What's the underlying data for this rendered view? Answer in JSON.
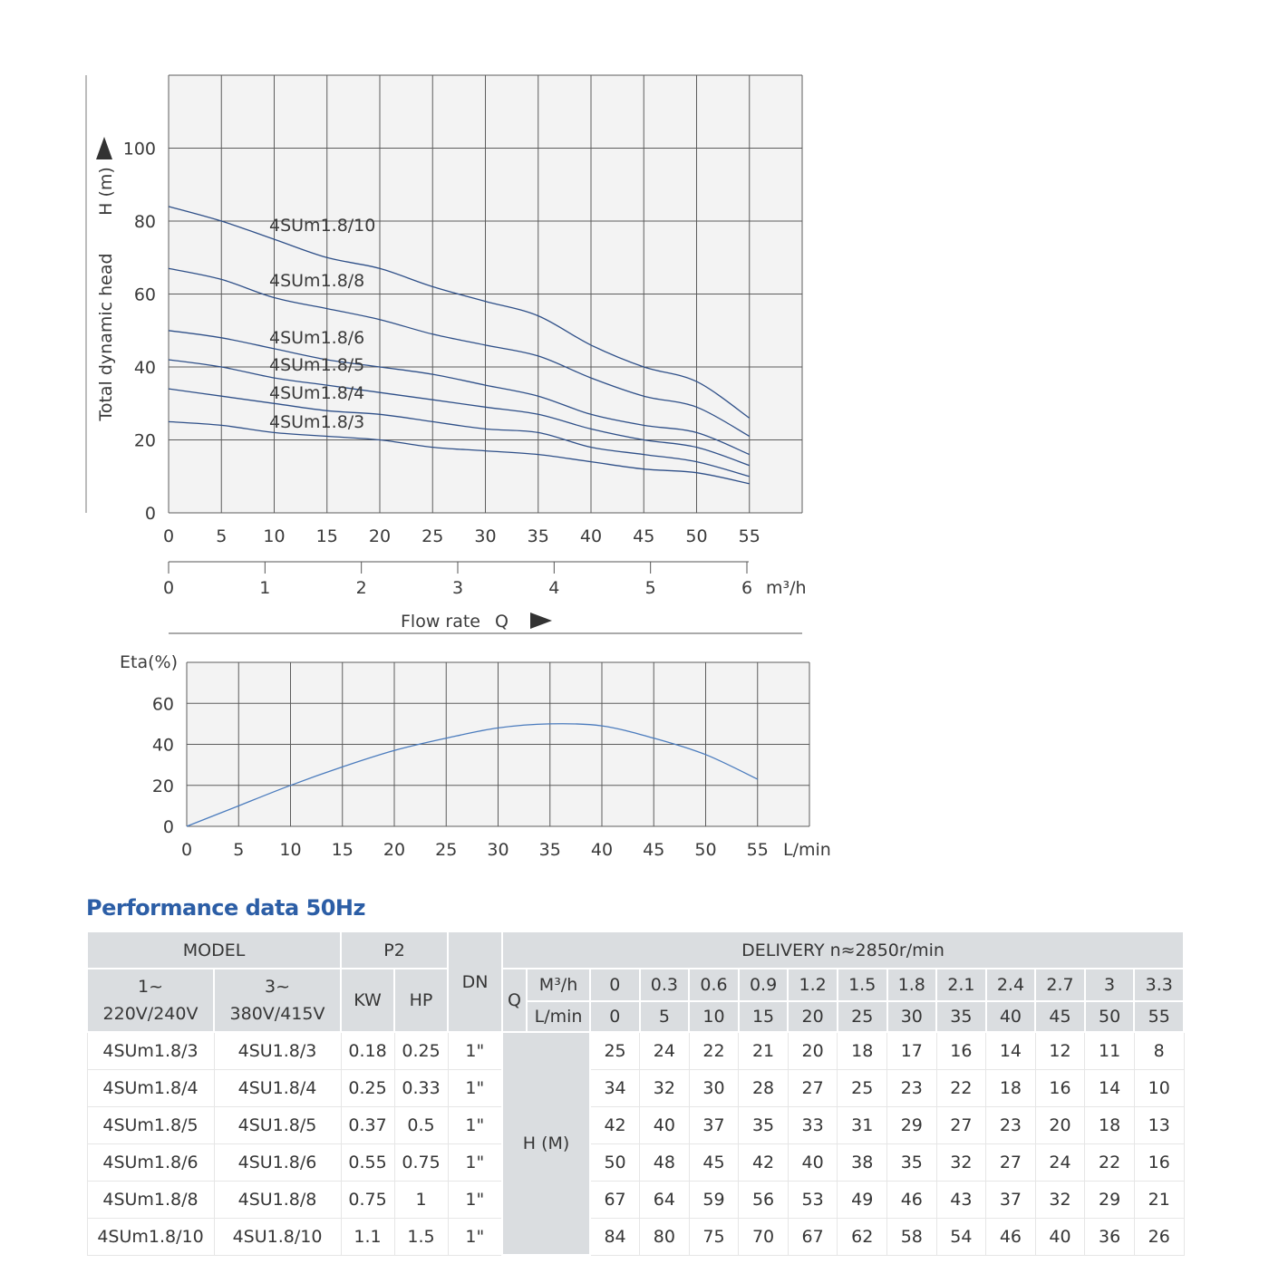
{
  "colors": {
    "head_curve": "#2e4f88",
    "eta_curve": "#4a7bbd",
    "title": "#2c5ea6",
    "header_background": "#dadde0",
    "plot_background": "#f3f3f3"
  },
  "icons": {
    "y_axis_arrow": "up-arrow-icon",
    "x_axis_arrow": "right-arrow-icon"
  },
  "chart_data": [
    {
      "type": "line",
      "ylabel": "Total dynamic head",
      "yunit": "H (m)",
      "xlabel": "Flow rate",
      "xlabel_symbol": "Q",
      "x": [
        0,
        5,
        10,
        15,
        20,
        25,
        30,
        35,
        40,
        45,
        50,
        55
      ],
      "xticks": [
        0,
        5,
        10,
        15,
        20,
        25,
        30,
        35,
        40,
        45,
        50,
        55
      ],
      "xlim": [
        0,
        60
      ],
      "yticks": [
        0,
        20,
        40,
        60,
        80,
        100
      ],
      "ylim": [
        0,
        120
      ],
      "x2_ticks": [
        0,
        1,
        2,
        3,
        4,
        5,
        6
      ],
      "x2lim": [
        0,
        6
      ],
      "x2_unit": "m³/h",
      "grid": true,
      "series": [
        {
          "name": "4SUm1.8/10",
          "values": [
            84,
            80,
            75,
            70,
            67,
            62,
            58,
            54,
            46,
            40,
            36,
            26
          ]
        },
        {
          "name": "4SUm1.8/8",
          "values": [
            67,
            64,
            59,
            56,
            53,
            49,
            46,
            43,
            37,
            32,
            29,
            21
          ]
        },
        {
          "name": "4SUm1.8/6",
          "values": [
            50,
            48,
            45,
            42,
            40,
            38,
            35,
            32,
            27,
            24,
            22,
            16
          ]
        },
        {
          "name": "4SUm1.8/5",
          "values": [
            42,
            40,
            37,
            35,
            33,
            31,
            29,
            27,
            23,
            20,
            18,
            13
          ]
        },
        {
          "name": "4SUm1.8/4",
          "values": [
            34,
            32,
            30,
            28,
            27,
            25,
            23,
            22,
            18,
            16,
            14,
            10
          ]
        },
        {
          "name": "4SUm1.8/3",
          "values": [
            25,
            24,
            22,
            21,
            20,
            18,
            17,
            16,
            14,
            12,
            11,
            8
          ]
        }
      ]
    },
    {
      "type": "line",
      "ylabel": "Eta(%)",
      "x_unit": "L/min",
      "x": [
        0,
        5,
        10,
        15,
        20,
        25,
        30,
        35,
        40,
        45,
        50,
        55
      ],
      "xticks": [
        0,
        5,
        10,
        15,
        20,
        25,
        30,
        35,
        40,
        45,
        50,
        55
      ],
      "xlim": [
        0,
        60
      ],
      "yticks": [
        0,
        20,
        40,
        60
      ],
      "ylim": [
        0,
        80
      ],
      "grid": true,
      "series": [
        {
          "values": [
            0,
            10,
            20,
            29,
            37,
            43,
            48,
            50,
            49,
            43,
            35,
            23
          ]
        }
      ]
    }
  ],
  "table": {
    "title": "Performance data 50Hz",
    "header": {
      "model": "MODEL",
      "p2": "P2",
      "dn": "DN",
      "delivery": "DELIVERY  n≈2850r/min",
      "single_phase": [
        "1~",
        "220V/240V"
      ],
      "three_phase": [
        "3~",
        "380V/415V"
      ],
      "kw": "KW",
      "hp": "HP",
      "q": "Q",
      "m3h_label": "M³/h",
      "lmin_label": "L/min",
      "m3h": [
        "0",
        "0.3",
        "0.6",
        "0.9",
        "1.2",
        "1.5",
        "1.8",
        "2.1",
        "2.4",
        "2.7",
        "3",
        "3.3"
      ],
      "lmin": [
        "0",
        "5",
        "10",
        "15",
        "20",
        "25",
        "30",
        "35",
        "40",
        "45",
        "50",
        "55"
      ]
    },
    "head_label": "H (M)",
    "rows": [
      {
        "model_1ph": "4SUm1.8/3",
        "model_3ph": "4SU1.8/3",
        "kw": "0.18",
        "hp": "0.25",
        "dn": "1\"",
        "head": [
          25,
          24,
          22,
          21,
          20,
          18,
          17,
          16,
          14,
          12,
          11,
          8
        ]
      },
      {
        "model_1ph": "4SUm1.8/4",
        "model_3ph": "4SU1.8/4",
        "kw": "0.25",
        "hp": "0.33",
        "dn": "1\"",
        "head": [
          34,
          32,
          30,
          28,
          27,
          25,
          23,
          22,
          18,
          16,
          14,
          10
        ]
      },
      {
        "model_1ph": "4SUm1.8/5",
        "model_3ph": "4SU1.8/5",
        "kw": "0.37",
        "hp": "0.5",
        "dn": "1\"",
        "head": [
          42,
          40,
          37,
          35,
          33,
          31,
          29,
          27,
          23,
          20,
          18,
          13
        ]
      },
      {
        "model_1ph": "4SUm1.8/6",
        "model_3ph": "4SU1.8/6",
        "kw": "0.55",
        "hp": "0.75",
        "dn": "1\"",
        "head": [
          50,
          48,
          45,
          42,
          40,
          38,
          35,
          32,
          27,
          24,
          22,
          16
        ]
      },
      {
        "model_1ph": "4SUm1.8/8",
        "model_3ph": "4SU1.8/8",
        "kw": "0.75",
        "hp": "1",
        "dn": "1\"",
        "head": [
          67,
          64,
          59,
          56,
          53,
          49,
          46,
          43,
          37,
          32,
          29,
          21
        ]
      },
      {
        "model_1ph": "4SUm1.8/10",
        "model_3ph": "4SU1.8/10",
        "kw": "1.1",
        "hp": "1.5",
        "dn": "1\"",
        "head": [
          84,
          80,
          75,
          70,
          67,
          62,
          58,
          54,
          46,
          40,
          36,
          26
        ]
      }
    ]
  }
}
